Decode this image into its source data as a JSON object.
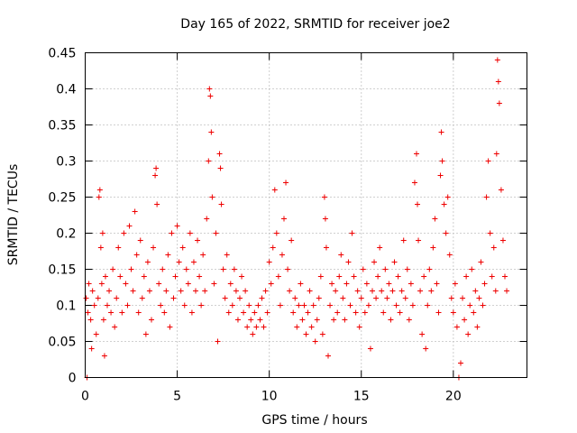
{
  "chart_data": {
    "type": "scatter",
    "title": "Day 165 of 2022, SRMTID for receiver joe2",
    "xlabel": "GPS time / hours",
    "ylabel": "SRMTID / TECUs",
    "xlim": [
      0,
      24
    ],
    "ylim": [
      0,
      0.45
    ],
    "xticks": [
      0,
      5,
      10,
      15,
      20
    ],
    "xtick_labels": [
      "0",
      "5",
      "10",
      "15",
      "20"
    ],
    "yticks": [
      0,
      0.05,
      0.1,
      0.15,
      0.2,
      0.25,
      0.3,
      0.35,
      0.4,
      0.45
    ],
    "ytick_labels": [
      "0",
      "0.05",
      "0.1",
      "0.15",
      "0.2",
      "0.25",
      "0.3",
      "0.35",
      "0.4",
      "0.45"
    ],
    "marker": "+",
    "color": "#ee0000",
    "grid": true,
    "series": [
      {
        "name": "SRMTID",
        "points": [
          [
            0.05,
            0.11
          ],
          [
            0.1,
            0.0
          ],
          [
            0.15,
            0.09
          ],
          [
            0.2,
            0.13
          ],
          [
            0.3,
            0.08
          ],
          [
            0.35,
            0.04
          ],
          [
            0.4,
            0.12
          ],
          [
            0.5,
            0.1
          ],
          [
            0.6,
            0.06
          ],
          [
            0.7,
            0.11
          ],
          [
            0.75,
            0.25
          ],
          [
            0.8,
            0.26
          ],
          [
            0.85,
            0.18
          ],
          [
            0.9,
            0.13
          ],
          [
            0.95,
            0.2
          ],
          [
            1.0,
            0.08
          ],
          [
            1.05,
            0.03
          ],
          [
            1.1,
            0.14
          ],
          [
            1.2,
            0.1
          ],
          [
            1.3,
            0.12
          ],
          [
            1.4,
            0.09
          ],
          [
            1.5,
            0.15
          ],
          [
            1.6,
            0.07
          ],
          [
            1.7,
            0.11
          ],
          [
            1.8,
            0.18
          ],
          [
            1.9,
            0.14
          ],
          [
            2.0,
            0.09
          ],
          [
            2.1,
            0.2
          ],
          [
            2.2,
            0.13
          ],
          [
            2.3,
            0.1
          ],
          [
            2.4,
            0.21
          ],
          [
            2.5,
            0.15
          ],
          [
            2.6,
            0.12
          ],
          [
            2.7,
            0.23
          ],
          [
            2.8,
            0.17
          ],
          [
            2.9,
            0.09
          ],
          [
            3.0,
            0.19
          ],
          [
            3.1,
            0.11
          ],
          [
            3.2,
            0.14
          ],
          [
            3.3,
            0.06
          ],
          [
            3.4,
            0.16
          ],
          [
            3.5,
            0.12
          ],
          [
            3.6,
            0.08
          ],
          [
            3.7,
            0.18
          ],
          [
            3.8,
            0.28
          ],
          [
            3.85,
            0.29
          ],
          [
            3.9,
            0.24
          ],
          [
            4.0,
            0.13
          ],
          [
            4.1,
            0.1
          ],
          [
            4.2,
            0.15
          ],
          [
            4.3,
            0.09
          ],
          [
            4.4,
            0.12
          ],
          [
            4.5,
            0.17
          ],
          [
            4.6,
            0.07
          ],
          [
            4.7,
            0.2
          ],
          [
            4.8,
            0.11
          ],
          [
            4.9,
            0.14
          ],
          [
            5.0,
            0.21
          ],
          [
            5.1,
            0.16
          ],
          [
            5.2,
            0.12
          ],
          [
            5.3,
            0.18
          ],
          [
            5.4,
            0.1
          ],
          [
            5.5,
            0.15
          ],
          [
            5.6,
            0.13
          ],
          [
            5.7,
            0.2
          ],
          [
            5.8,
            0.09
          ],
          [
            5.9,
            0.16
          ],
          [
            6.0,
            0.12
          ],
          [
            6.1,
            0.19
          ],
          [
            6.2,
            0.14
          ],
          [
            6.3,
            0.1
          ],
          [
            6.4,
            0.17
          ],
          [
            6.5,
            0.12
          ],
          [
            6.6,
            0.22
          ],
          [
            6.7,
            0.3
          ],
          [
            6.75,
            0.4
          ],
          [
            6.8,
            0.39
          ],
          [
            6.85,
            0.34
          ],
          [
            6.9,
            0.25
          ],
          [
            7.0,
            0.13
          ],
          [
            7.1,
            0.2
          ],
          [
            7.2,
            0.05
          ],
          [
            7.3,
            0.31
          ],
          [
            7.35,
            0.29
          ],
          [
            7.4,
            0.24
          ],
          [
            7.5,
            0.15
          ],
          [
            7.6,
            0.11
          ],
          [
            7.7,
            0.17
          ],
          [
            7.8,
            0.09
          ],
          [
            7.9,
            0.13
          ],
          [
            8.0,
            0.1
          ],
          [
            8.1,
            0.15
          ],
          [
            8.2,
            0.12
          ],
          [
            8.3,
            0.08
          ],
          [
            8.4,
            0.11
          ],
          [
            8.5,
            0.14
          ],
          [
            8.6,
            0.09
          ],
          [
            8.7,
            0.12
          ],
          [
            8.8,
            0.07
          ],
          [
            8.9,
            0.1
          ],
          [
            9.0,
            0.08
          ],
          [
            9.1,
            0.06
          ],
          [
            9.2,
            0.09
          ],
          [
            9.3,
            0.07
          ],
          [
            9.4,
            0.1
          ],
          [
            9.5,
            0.08
          ],
          [
            9.6,
            0.11
          ],
          [
            9.7,
            0.07
          ],
          [
            9.8,
            0.12
          ],
          [
            9.9,
            0.09
          ],
          [
            10.0,
            0.16
          ],
          [
            10.1,
            0.13
          ],
          [
            10.2,
            0.18
          ],
          [
            10.3,
            0.26
          ],
          [
            10.4,
            0.2
          ],
          [
            10.5,
            0.14
          ],
          [
            10.6,
            0.1
          ],
          [
            10.7,
            0.17
          ],
          [
            10.8,
            0.22
          ],
          [
            10.9,
            0.27
          ],
          [
            11.0,
            0.15
          ],
          [
            11.1,
            0.12
          ],
          [
            11.2,
            0.19
          ],
          [
            11.3,
            0.09
          ],
          [
            11.4,
            0.11
          ],
          [
            11.5,
            0.07
          ],
          [
            11.6,
            0.1
          ],
          [
            11.7,
            0.13
          ],
          [
            11.8,
            0.08
          ],
          [
            11.9,
            0.1
          ],
          [
            12.0,
            0.06
          ],
          [
            12.1,
            0.09
          ],
          [
            12.2,
            0.12
          ],
          [
            12.3,
            0.07
          ],
          [
            12.4,
            0.1
          ],
          [
            12.5,
            0.05
          ],
          [
            12.6,
            0.08
          ],
          [
            12.7,
            0.11
          ],
          [
            12.8,
            0.14
          ],
          [
            12.9,
            0.06
          ],
          [
            13.0,
            0.25
          ],
          [
            13.05,
            0.22
          ],
          [
            13.1,
            0.18
          ],
          [
            13.2,
            0.03
          ],
          [
            13.3,
            0.1
          ],
          [
            13.4,
            0.13
          ],
          [
            13.5,
            0.08
          ],
          [
            13.6,
            0.12
          ],
          [
            13.7,
            0.09
          ],
          [
            13.8,
            0.14
          ],
          [
            13.9,
            0.17
          ],
          [
            14.0,
            0.11
          ],
          [
            14.1,
            0.08
          ],
          [
            14.2,
            0.13
          ],
          [
            14.3,
            0.16
          ],
          [
            14.4,
            0.1
          ],
          [
            14.5,
            0.2
          ],
          [
            14.6,
            0.14
          ],
          [
            14.7,
            0.09
          ],
          [
            14.8,
            0.12
          ],
          [
            14.9,
            0.07
          ],
          [
            15.0,
            0.11
          ],
          [
            15.1,
            0.15
          ],
          [
            15.2,
            0.09
          ],
          [
            15.3,
            0.13
          ],
          [
            15.4,
            0.1
          ],
          [
            15.5,
            0.04
          ],
          [
            15.6,
            0.12
          ],
          [
            15.7,
            0.16
          ],
          [
            15.8,
            0.11
          ],
          [
            15.9,
            0.14
          ],
          [
            16.0,
            0.18
          ],
          [
            16.1,
            0.12
          ],
          [
            16.2,
            0.09
          ],
          [
            16.3,
            0.15
          ],
          [
            16.4,
            0.11
          ],
          [
            16.5,
            0.13
          ],
          [
            16.6,
            0.08
          ],
          [
            16.7,
            0.12
          ],
          [
            16.8,
            0.16
          ],
          [
            16.9,
            0.1
          ],
          [
            17.0,
            0.14
          ],
          [
            17.1,
            0.09
          ],
          [
            17.2,
            0.12
          ],
          [
            17.3,
            0.19
          ],
          [
            17.4,
            0.11
          ],
          [
            17.5,
            0.15
          ],
          [
            17.6,
            0.08
          ],
          [
            17.7,
            0.13
          ],
          [
            17.8,
            0.1
          ],
          [
            17.9,
            0.27
          ],
          [
            18.0,
            0.31
          ],
          [
            18.05,
            0.24
          ],
          [
            18.1,
            0.19
          ],
          [
            18.2,
            0.12
          ],
          [
            18.3,
            0.06
          ],
          [
            18.4,
            0.14
          ],
          [
            18.5,
            0.04
          ],
          [
            18.6,
            0.1
          ],
          [
            18.7,
            0.15
          ],
          [
            18.8,
            0.12
          ],
          [
            18.9,
            0.18
          ],
          [
            19.0,
            0.22
          ],
          [
            19.1,
            0.13
          ],
          [
            19.2,
            0.09
          ],
          [
            19.3,
            0.28
          ],
          [
            19.35,
            0.34
          ],
          [
            19.4,
            0.3
          ],
          [
            19.5,
            0.24
          ],
          [
            19.6,
            0.2
          ],
          [
            19.7,
            0.25
          ],
          [
            19.8,
            0.17
          ],
          [
            19.9,
            0.11
          ],
          [
            20.0,
            0.09
          ],
          [
            20.1,
            0.13
          ],
          [
            20.2,
            0.07
          ],
          [
            20.3,
            0.0
          ],
          [
            20.4,
            0.02
          ],
          [
            20.5,
            0.11
          ],
          [
            20.6,
            0.08
          ],
          [
            20.7,
            0.14
          ],
          [
            20.8,
            0.06
          ],
          [
            20.9,
            0.1
          ],
          [
            21.0,
            0.15
          ],
          [
            21.1,
            0.09
          ],
          [
            21.2,
            0.12
          ],
          [
            21.3,
            0.07
          ],
          [
            21.4,
            0.11
          ],
          [
            21.5,
            0.16
          ],
          [
            21.6,
            0.1
          ],
          [
            21.7,
            0.13
          ],
          [
            21.8,
            0.25
          ],
          [
            21.9,
            0.3
          ],
          [
            22.0,
            0.2
          ],
          [
            22.1,
            0.14
          ],
          [
            22.2,
            0.18
          ],
          [
            22.3,
            0.12
          ],
          [
            22.35,
            0.31
          ],
          [
            22.4,
            0.44
          ],
          [
            22.45,
            0.41
          ],
          [
            22.5,
            0.38
          ],
          [
            22.6,
            0.26
          ],
          [
            22.7,
            0.19
          ],
          [
            22.8,
            0.14
          ],
          [
            22.9,
            0.12
          ]
        ]
      }
    ]
  }
}
